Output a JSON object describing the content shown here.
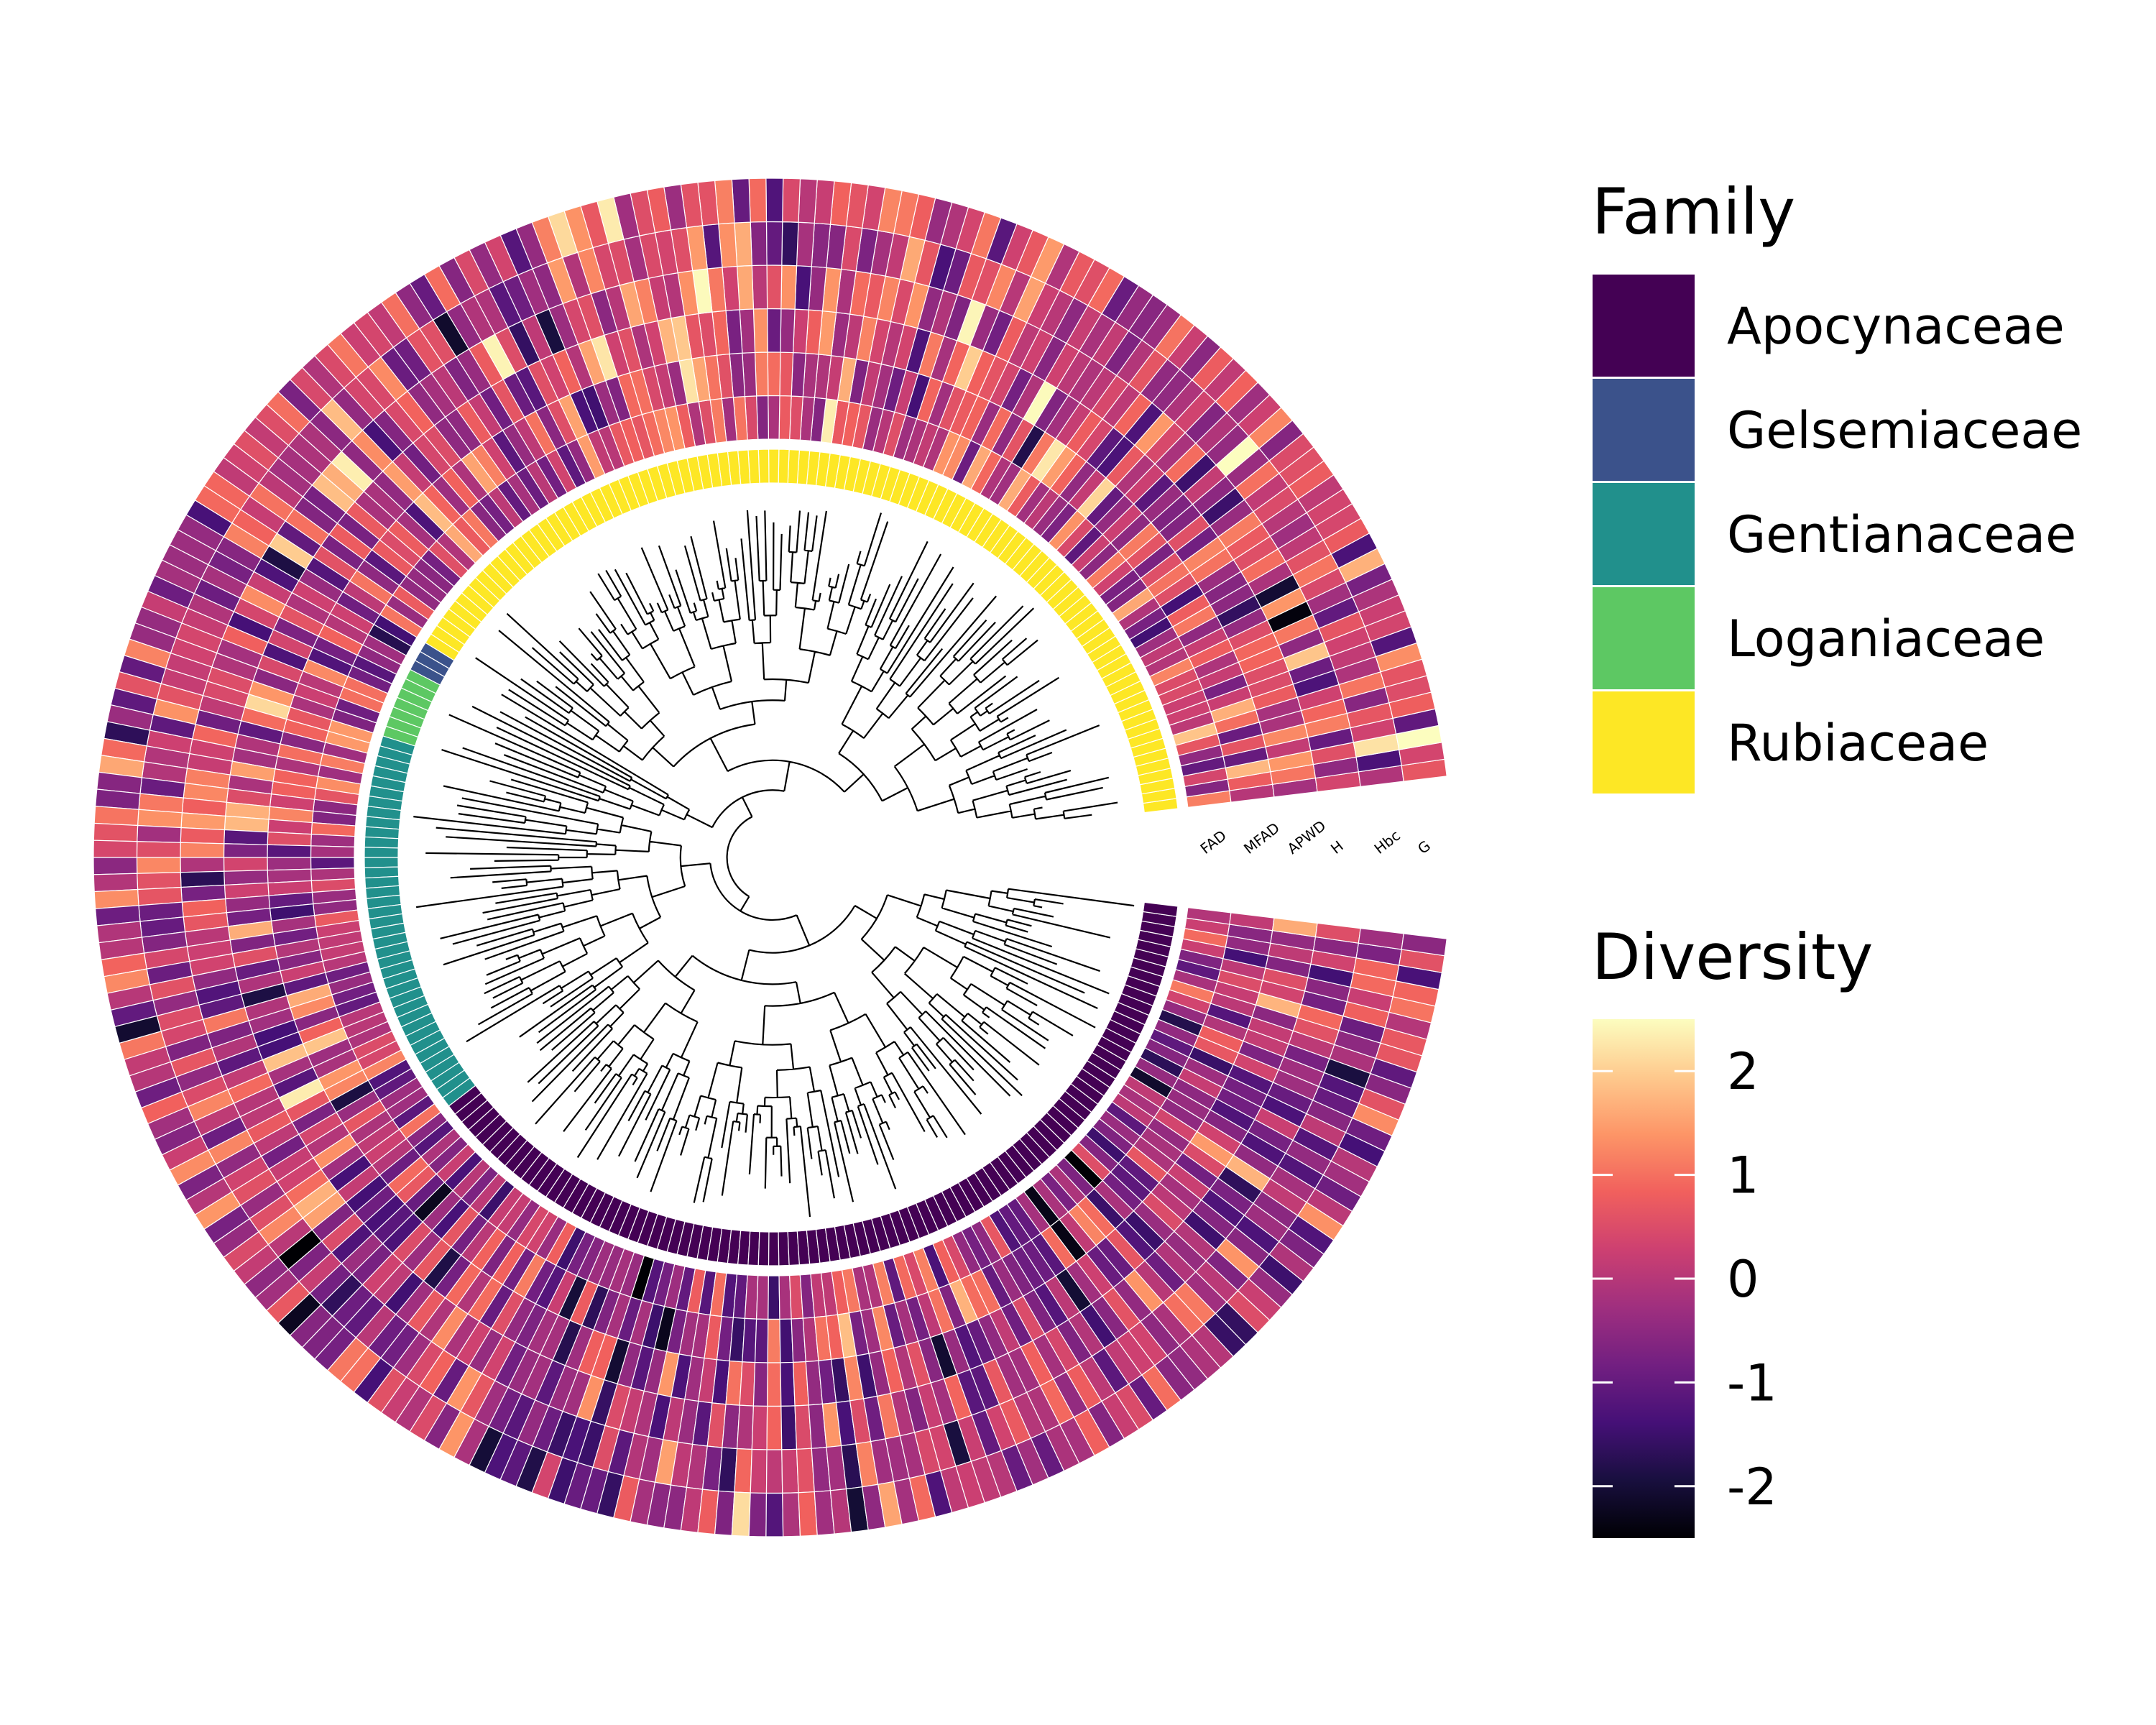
{
  "chart_data": {
    "type": "heatmap",
    "layout": "circular phylogenetic tree with family ring and trait heatmap rings",
    "tip_count": 240,
    "family_order_counterclockwise_from_gap": [
      "Rubiaceae",
      "Gelsemiaceae",
      "Loganiaceae",
      "Gentianaceae",
      "Apocynaceae"
    ],
    "family_tip_counts": {
      "Rubiaceae": 98,
      "Gelsemiaceae": 3,
      "Loganiaceae": 7,
      "Gentianaceae": 38,
      "Apocynaceae": 94
    },
    "ring_labels": [
      "FAD",
      "MFAD",
      "APWD",
      "H",
      "Hbc",
      "G"
    ],
    "legends": {
      "family": {
        "title": "Family",
        "items": [
          {
            "label": "Apocynaceae",
            "color": "#440154"
          },
          {
            "label": "Gelsemiaceae",
            "color": "#3B528B"
          },
          {
            "label": "Gentianaceae",
            "color": "#21908C"
          },
          {
            "label": "Loganiaceae",
            "color": "#5DC863"
          },
          {
            "label": "Rubiaceae",
            "color": "#FDE725"
          }
        ]
      },
      "diversity": {
        "title": "Diversity",
        "range": [
          -2.5,
          2.5
        ],
        "ticks": [
          2,
          1,
          0,
          -1,
          -2
        ],
        "tick_labels": [
          "2",
          "1",
          "0",
          "-1",
          "-2"
        ],
        "palette": "magma",
        "stops": [
          "#000004",
          "#180F3E",
          "#451077",
          "#721F81",
          "#9F2F7F",
          "#CD4071",
          "#F1605D",
          "#FD9567",
          "#FEC98D",
          "#FCFDBF"
        ]
      }
    }
  }
}
